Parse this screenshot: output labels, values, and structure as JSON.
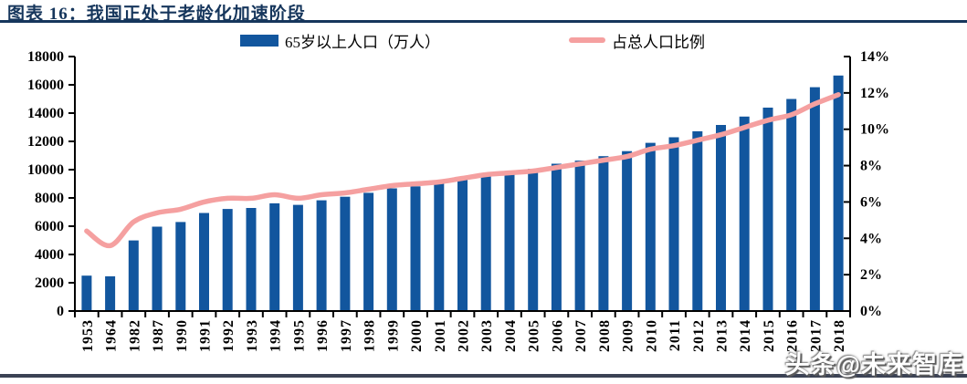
{
  "header": {
    "title": "图表 16：我国正处于老龄化加速阶段"
  },
  "watermark": "头条@未来智库",
  "colors": {
    "bar": "#12569E",
    "line": "#F5A0A0",
    "title_navy": "#16365C",
    "bottom_rule": "#3B4254",
    "axis": "#000000"
  },
  "chart_data": {
    "type": "bar",
    "title": "图表 16：我国正处于老龄化加速阶段",
    "categories": [
      "1953",
      "1964",
      "1982",
      "1987",
      "1990",
      "1991",
      "1992",
      "1993",
      "1994",
      "1995",
      "1996",
      "1997",
      "1998",
      "1999",
      "2000",
      "2001",
      "2002",
      "2003",
      "2004",
      "2005",
      "2006",
      "2007",
      "2008",
      "2009",
      "2010",
      "2011",
      "2012",
      "2013",
      "2014",
      "2015",
      "2016",
      "2017",
      "2018"
    ],
    "series": [
      {
        "name": "65岁以上人口（万人）",
        "type": "bar",
        "axis": "left",
        "values": [
          2504,
          2458,
          4991,
          5968,
          6299,
          6938,
          7218,
          7289,
          7622,
          7510,
          7833,
          8085,
          8359,
          8679,
          8821,
          9062,
          9377,
          9692,
          9857,
          10055,
          10419,
          10636,
          10956,
          11307,
          11894,
          12288,
          12714,
          13161,
          13755,
          14386,
          15003,
          15831,
          16658
        ]
      },
      {
        "name": "占总人口比例",
        "type": "line",
        "axis": "right",
        "values": [
          4.4,
          3.6,
          4.9,
          5.4,
          5.6,
          6.0,
          6.2,
          6.2,
          6.4,
          6.2,
          6.4,
          6.5,
          6.7,
          6.9,
          7.0,
          7.1,
          7.3,
          7.5,
          7.6,
          7.7,
          7.9,
          8.1,
          8.3,
          8.5,
          8.9,
          9.1,
          9.4,
          9.7,
          10.1,
          10.5,
          10.8,
          11.4,
          11.9
        ]
      }
    ],
    "left_axis": {
      "min": 0,
      "max": 18000,
      "step": 2000,
      "tick_labels": [
        "0",
        "2000",
        "4000",
        "6000",
        "8000",
        "10000",
        "12000",
        "14000",
        "16000",
        "18000"
      ]
    },
    "right_axis": {
      "min": 0,
      "max": 14,
      "step": 2,
      "tick_labels": [
        "0%",
        "2%",
        "4%",
        "6%",
        "8%",
        "10%",
        "12%",
        "14%"
      ]
    },
    "grid": false,
    "legend_position": "top"
  }
}
